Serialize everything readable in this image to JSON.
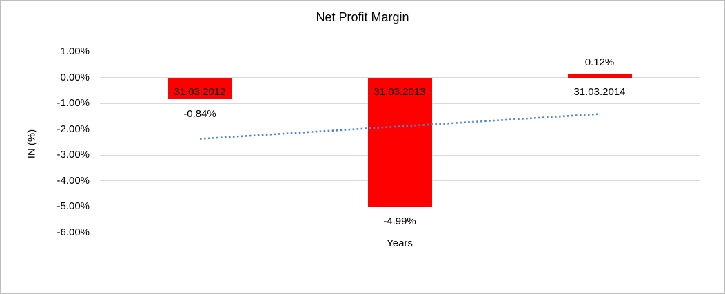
{
  "chart": {
    "title": "Net Profit Margin",
    "y_axis_title": "IN (%)",
    "x_axis_title": "Years",
    "colors": {
      "bar": "#ff0000",
      "trendline": "#4f86c6",
      "gridline": "#d9d9d9",
      "text": "#000000",
      "background": "#ffffff",
      "border": "#bdbdbd"
    }
  },
  "chart_data": {
    "type": "bar",
    "title": "Net Profit Margin",
    "xlabel": "Years",
    "ylabel": "IN (%)",
    "categories": [
      "31.03.2012",
      "31.03.2013",
      "31.03.2014"
    ],
    "values": [
      -0.84,
      -4.99,
      0.12
    ],
    "data_labels": [
      "-0.84%",
      "-4.99%",
      "0.12%"
    ],
    "yticks": [
      {
        "label": "1.00%",
        "value": 1
      },
      {
        "label": "0.00%",
        "value": 0
      },
      {
        "label": "-1.00%",
        "value": -1
      },
      {
        "label": "-2.00%",
        "value": -2
      },
      {
        "label": "-3.00%",
        "value": -3
      },
      {
        "label": "-4.00%",
        "value": -4
      },
      {
        "label": "-5.00%",
        "value": -5
      },
      {
        "label": "-6.00%",
        "value": -6
      }
    ],
    "ylim": [
      -6,
      1
    ],
    "grid": true,
    "legend": false,
    "trendline": {
      "style": "dotted",
      "start_value": -2.37,
      "end_value": -1.41
    }
  }
}
